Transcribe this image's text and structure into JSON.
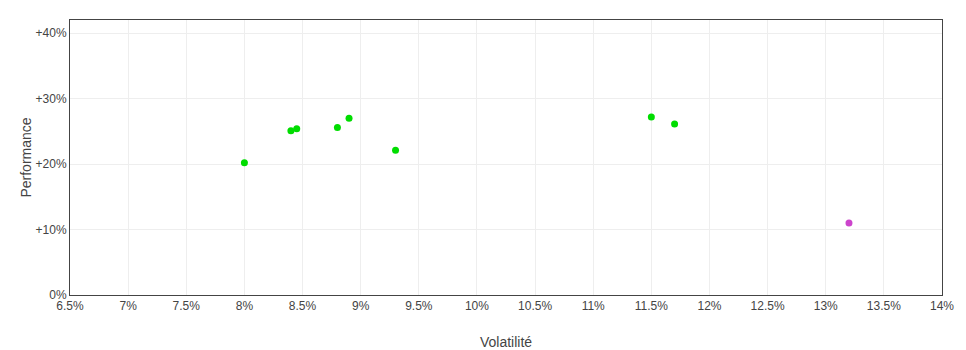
{
  "chart_data": {
    "type": "scatter",
    "xlabel": "Volatilité",
    "ylabel": "Performance",
    "xlim": [
      0.065,
      0.14
    ],
    "ylim": [
      0.0,
      0.42
    ],
    "xticks": [
      {
        "value": 0.065,
        "label": "6.5%"
      },
      {
        "value": 0.07,
        "label": "7%"
      },
      {
        "value": 0.075,
        "label": "7.5%"
      },
      {
        "value": 0.08,
        "label": "8%"
      },
      {
        "value": 0.085,
        "label": "8.5%"
      },
      {
        "value": 0.09,
        "label": "9%"
      },
      {
        "value": 0.095,
        "label": "9.5%"
      },
      {
        "value": 0.1,
        "label": "10%"
      },
      {
        "value": 0.105,
        "label": "10.5%"
      },
      {
        "value": 0.11,
        "label": "11%"
      },
      {
        "value": 0.115,
        "label": "11.5%"
      },
      {
        "value": 0.12,
        "label": "12%"
      },
      {
        "value": 0.125,
        "label": "12.5%"
      },
      {
        "value": 0.13,
        "label": "13%"
      },
      {
        "value": 0.135,
        "label": "13.5%"
      },
      {
        "value": 0.14,
        "label": "14%"
      }
    ],
    "yticks": [
      {
        "value": 0.0,
        "label": "0%"
      },
      {
        "value": 0.1,
        "label": "+10%"
      },
      {
        "value": 0.2,
        "label": "+20%"
      },
      {
        "value": 0.3,
        "label": "+30%"
      },
      {
        "value": 0.4,
        "label": "+40%"
      }
    ],
    "grid": true,
    "series": [
      {
        "color": "#00dd00",
        "x": [
          0.08,
          0.084,
          0.0845,
          0.088,
          0.089,
          0.093,
          0.115,
          0.117
        ],
        "values": [
          0.202,
          0.251,
          0.254,
          0.256,
          0.27,
          0.221,
          0.272,
          0.261
        ]
      },
      {
        "color": "#cc44cc",
        "x": [
          0.132
        ],
        "values": [
          0.11
        ]
      }
    ]
  }
}
